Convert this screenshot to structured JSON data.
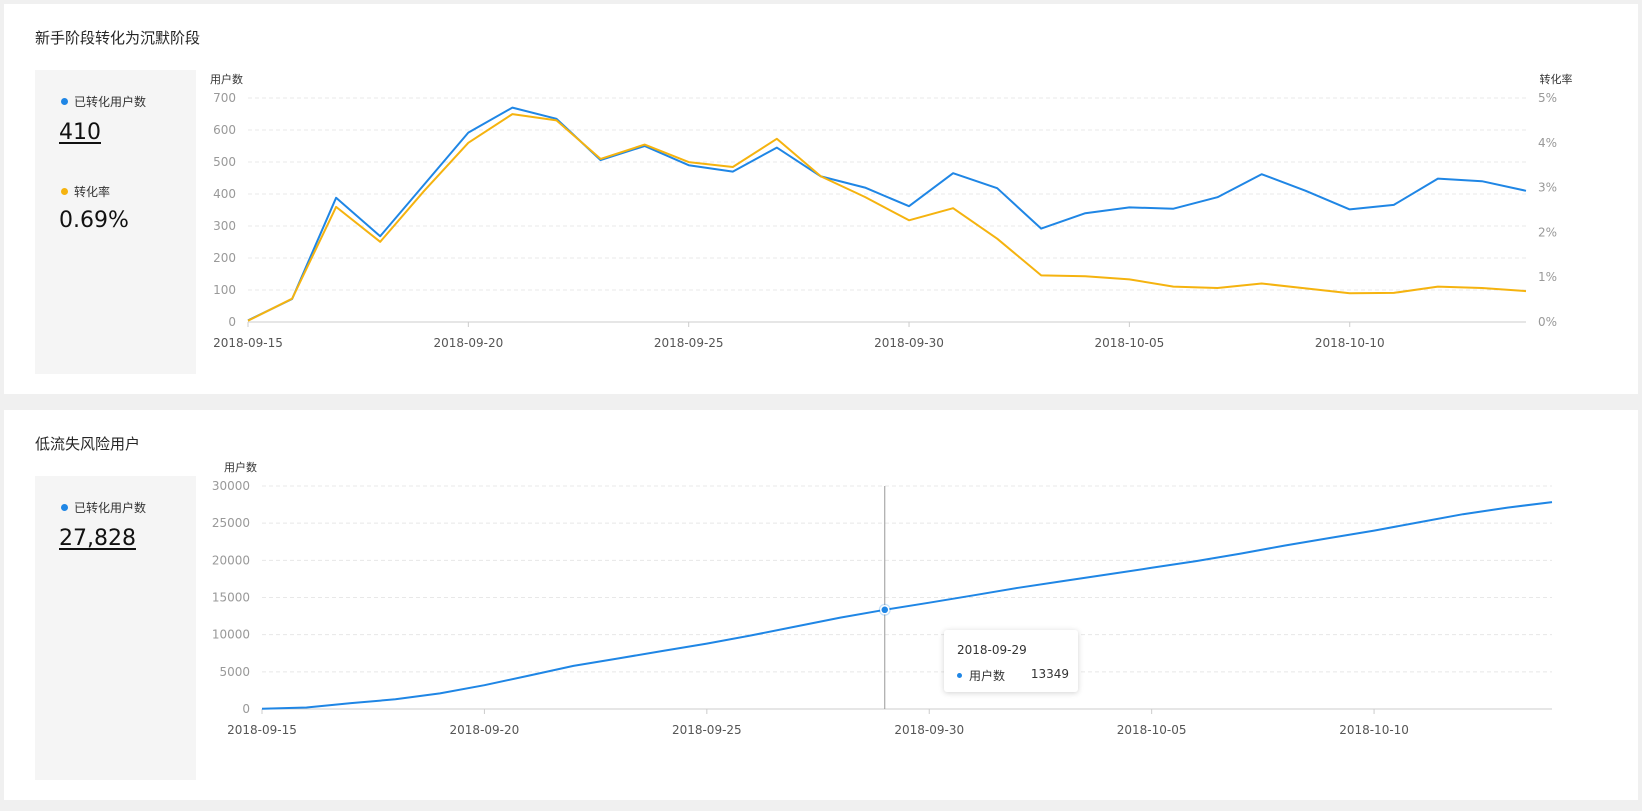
{
  "colors": {
    "blue": "#1f86e5",
    "orange": "#f5b30f",
    "grid": "#e8e8e8",
    "axis": "#cccccc"
  },
  "panel1": {
    "title": "新手阶段转化为沉默阶段",
    "stat1_label": "已转化用户数",
    "stat1_value": "410",
    "stat2_label": "转化率",
    "stat2_value": "0.69%"
  },
  "panel2": {
    "title": "低流失风险用户",
    "stat1_label": "已转化用户数",
    "stat1_value": "27,828"
  },
  "tooltip": {
    "date": "2018-09-29",
    "series": "用户数",
    "value": "13349"
  },
  "chart_data": [
    {
      "type": "line",
      "ylabel": "用户数",
      "y2label": "转化率",
      "x_ticks": [
        "2018-09-15",
        "2018-09-20",
        "2018-09-25",
        "2018-09-30",
        "2018-10-05",
        "2018-10-10"
      ],
      "y_ticks": [
        "0",
        "100",
        "200",
        "300",
        "400",
        "500",
        "600",
        "700"
      ],
      "y2_ticks": [
        "0%",
        "1%",
        "2%",
        "3%",
        "4%",
        "5%"
      ],
      "ylim": [
        0,
        700
      ],
      "y2lim": [
        0,
        5
      ],
      "x_start": "2018-09-15",
      "x_end": "2018-10-14",
      "grid": true,
      "series": [
        {
          "name": "用户数",
          "axis": "left",
          "values": [
            5,
            72,
            388,
            268,
            430,
            592,
            670,
            635,
            506,
            550,
            490,
            470,
            545,
            455,
            420,
            362,
            465,
            418,
            292,
            340,
            358,
            354,
            390,
            462,
            410,
            352,
            366,
            448,
            440,
            410
          ]
        },
        {
          "name": "转化率",
          "axis": "right",
          "values": [
            0.03,
            0.52,
            2.57,
            1.79,
            2.93,
            4.0,
            4.64,
            4.5,
            3.64,
            3.96,
            3.57,
            3.46,
            4.09,
            3.25,
            2.79,
            2.27,
            2.54,
            1.86,
            1.04,
            1.02,
            0.95,
            0.79,
            0.76,
            0.86,
            0.75,
            0.64,
            0.65,
            0.79,
            0.76,
            0.69
          ]
        }
      ]
    },
    {
      "type": "line",
      "ylabel": "用户数",
      "x_ticks": [
        "2018-09-15",
        "2018-09-20",
        "2018-09-25",
        "2018-09-30",
        "2018-10-05",
        "2018-10-10"
      ],
      "y_ticks": [
        "0",
        "5000",
        "10000",
        "15000",
        "20000",
        "25000",
        "30000"
      ],
      "ylim": [
        0,
        30000
      ],
      "x_start": "2018-09-15",
      "x_end": "2018-10-14",
      "grid": true,
      "highlight_x": "2018-09-29",
      "series": [
        {
          "name": "用户数",
          "values": [
            30,
            200,
            800,
            1300,
            2100,
            3200,
            4500,
            5800,
            6800,
            7800,
            8800,
            9900,
            11100,
            12300,
            13349,
            14300,
            15300,
            16300,
            17200,
            18100,
            19000,
            19900,
            20900,
            22000,
            23000,
            24000,
            25100,
            26200,
            27100,
            27828
          ]
        }
      ]
    }
  ]
}
